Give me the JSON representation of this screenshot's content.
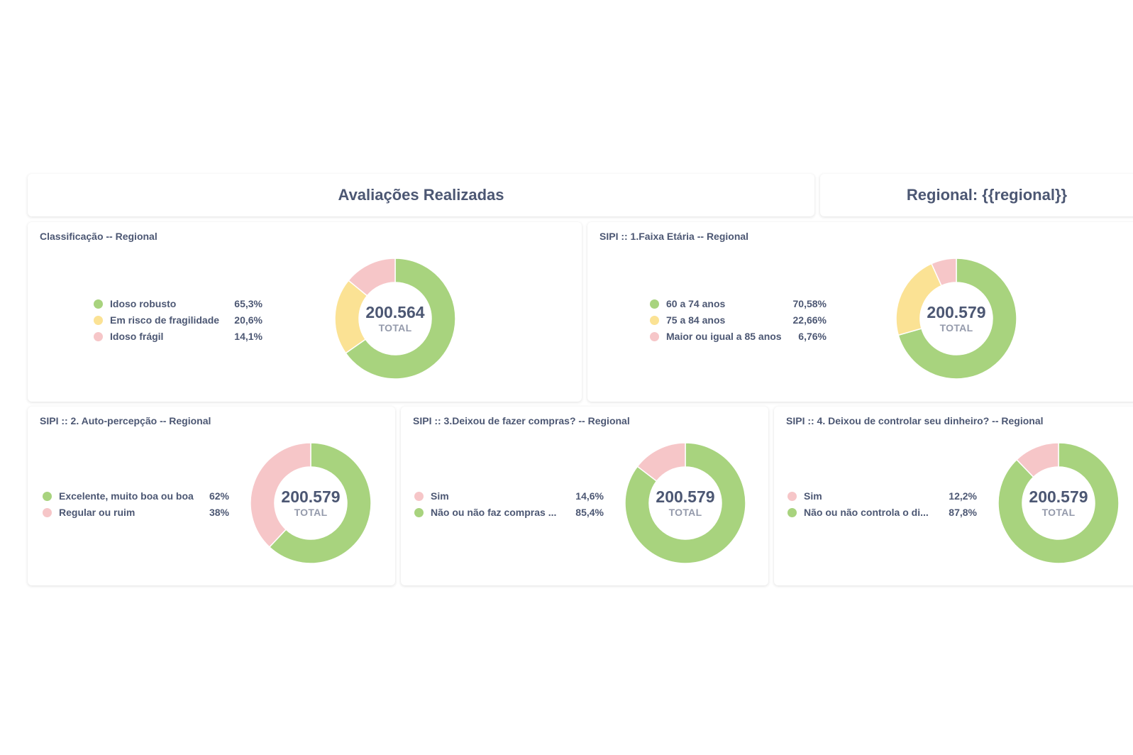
{
  "headers": {
    "left_title": "Avaliações Realizadas",
    "right_title": "Regional: {{regional}}"
  },
  "colors": {
    "green": "#a8d37e",
    "yellow": "#fbe294",
    "pink": "#f6c6c8",
    "text": "#4c5773",
    "muted": "#949aab"
  },
  "cards": [
    {
      "title": "Classificação -- Regional",
      "total": "200.564",
      "total_label": "TOTAL",
      "legend": [
        {
          "label": "Idoso robusto",
          "pct": "65,3%",
          "value": 65.3,
          "color": "green"
        },
        {
          "label": "Em risco de fragilidade",
          "pct": "20,6%",
          "value": 20.6,
          "color": "yellow"
        },
        {
          "label": "Idoso frágil",
          "pct": "14,1%",
          "value": 14.1,
          "color": "pink"
        }
      ]
    },
    {
      "title": "SIPI :: 1.Faixa Etária -- Regional",
      "total": "200.579",
      "total_label": "TOTAL",
      "legend": [
        {
          "label": "60 a 74 anos",
          "pct": "70,58%",
          "value": 70.58,
          "color": "green"
        },
        {
          "label": "75 a 84 anos",
          "pct": "22,66%",
          "value": 22.66,
          "color": "yellow"
        },
        {
          "label": "Maior ou igual a 85 anos",
          "pct": "6,76%",
          "value": 6.76,
          "color": "pink"
        }
      ]
    },
    {
      "title": "SIPI :: 2. Auto-percepção -- Regional",
      "total": "200.579",
      "total_label": "TOTAL",
      "legend": [
        {
          "label": "Excelente, muito boa ou boa",
          "pct": "62%",
          "value": 62,
          "color": "green"
        },
        {
          "label": "Regular ou ruim",
          "pct": "38%",
          "value": 38,
          "color": "pink"
        }
      ]
    },
    {
      "title": "SIPI :: 3.Deixou de fazer compras? -- Regional",
      "total": "200.579",
      "total_label": "TOTAL",
      "legend": [
        {
          "label": "Sim",
          "pct": "14,6%",
          "value": 14.6,
          "color": "pink"
        },
        {
          "label": "Não ou não faz compras ...",
          "pct": "85,4%",
          "value": 85.4,
          "color": "green"
        }
      ]
    },
    {
      "title": "SIPI :: 4. Deixou de controlar seu dinheiro? -- Regional",
      "total": "200.579",
      "total_label": "TOTAL",
      "legend": [
        {
          "label": "Sim",
          "pct": "12,2%",
          "value": 12.2,
          "color": "pink"
        },
        {
          "label": "Não ou não controla o di...",
          "pct": "87,8%",
          "value": 87.8,
          "color": "green"
        }
      ]
    }
  ]
}
